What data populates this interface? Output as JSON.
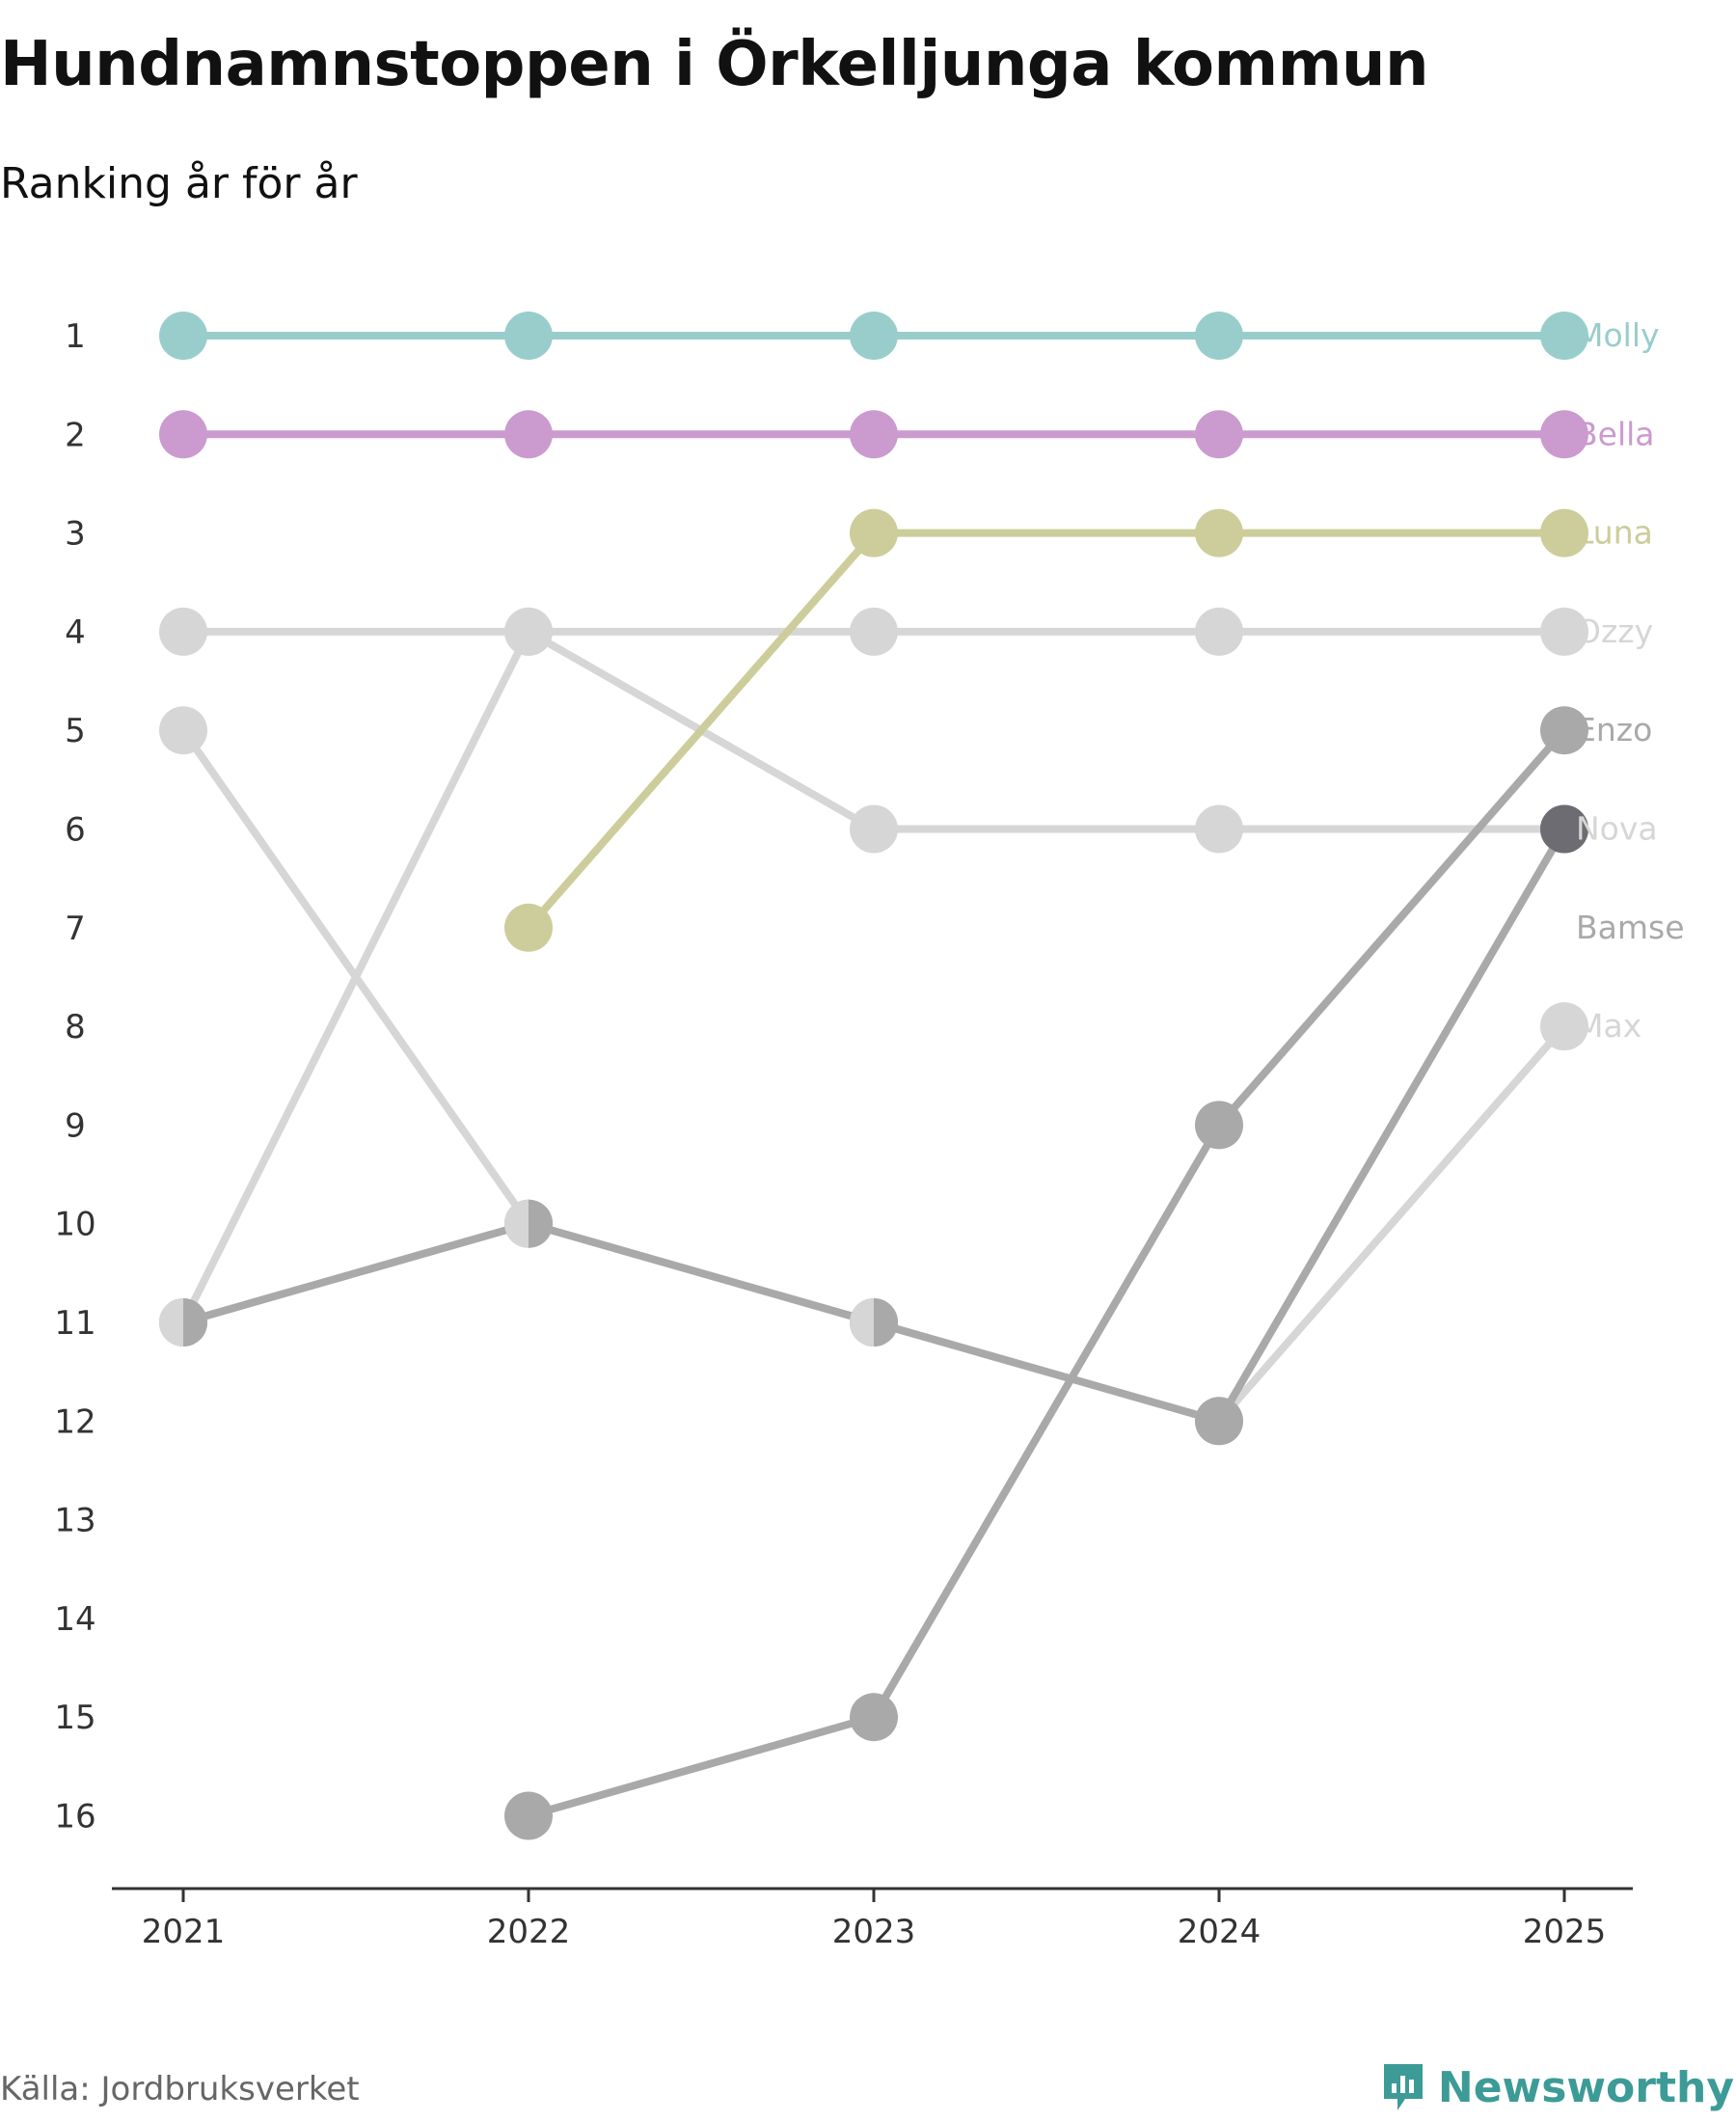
{
  "header": {
    "title": "Hundnamnstoppen i Örkelljunga kommun",
    "subtitle": "Ranking år för år"
  },
  "footer": {
    "source": "Källa: Jordbruksverket",
    "brand": "Newsworthy"
  },
  "colors": {
    "molly": "#99cdcc",
    "bella": "#cb9acf",
    "luna": "#cccd9a",
    "light_gray": "#d6d6d6",
    "mid_gray": "#a9a9a9",
    "dark_gray": "#6c6c72",
    "axis": "#333333",
    "brand": "#3c9b96"
  },
  "chart_data": {
    "type": "line",
    "title": "Hundnamnstoppen i Örkelljunga kommun",
    "subtitle": "Ranking år för år",
    "xlabel": "",
    "ylabel": "",
    "categories": [
      "2021",
      "2022",
      "2023",
      "2024",
      "2025"
    ],
    "y_ticks": [
      "1",
      "2",
      "3",
      "4",
      "5",
      "6",
      "7",
      "8",
      "9",
      "10",
      "11",
      "12",
      "13",
      "14",
      "15",
      "16"
    ],
    "ylim": [
      1,
      16
    ],
    "y_inverted": true,
    "grid": false,
    "series": [
      {
        "name": "Max",
        "color": "#d6d6d6",
        "values": [
          5,
          10,
          11,
          12,
          8
        ]
      },
      {
        "name": "Bamse",
        "color": "#a9a9a9",
        "values": [
          11,
          10,
          11,
          12,
          6
        ]
      },
      {
        "name": "Nova",
        "color": "#d6d6d6",
        "values": [
          4,
          4,
          6,
          6,
          6
        ]
      },
      {
        "name": "Ozzy",
        "color": "#d6d6d6",
        "values": [
          11,
          4,
          4,
          4,
          4
        ]
      },
      {
        "name": "Enzo",
        "color": "#a9a9a9",
        "values": [
          null,
          16,
          15,
          9,
          5
        ]
      },
      {
        "name": "Luna",
        "color": "#cccd9a",
        "values": [
          null,
          7,
          3,
          3,
          3
        ]
      },
      {
        "name": "Bella",
        "color": "#cb9acf",
        "values": [
          2,
          2,
          2,
          2,
          2
        ]
      },
      {
        "name": "Molly",
        "color": "#99cdcc",
        "values": [
          1,
          1,
          1,
          1,
          1
        ]
      }
    ],
    "end_labels": [
      {
        "name": "Molly",
        "rank": 1,
        "color": "#99cdcc"
      },
      {
        "name": "Bella",
        "rank": 2,
        "color": "#cb9acf"
      },
      {
        "name": "Luna",
        "rank": 3,
        "color": "#cccd9a"
      },
      {
        "name": "Ozzy",
        "rank": 4,
        "color": "#d6d6d6"
      },
      {
        "name": "Enzo",
        "rank": 5,
        "color": "#a9a9a9"
      },
      {
        "name": "Nova",
        "rank": 6,
        "color": "#d6d6d6"
      },
      {
        "name": "Bamse",
        "rank": 7,
        "color": "#a9a9a9"
      },
      {
        "name": "Max",
        "rank": 8,
        "color": "#d6d6d6"
      }
    ],
    "highlight_point": {
      "name": "Bamse",
      "year": "2025",
      "rank": 6,
      "color": "#6c6c72"
    },
    "split_points": [
      {
        "year": "2021",
        "rank": 11,
        "left": "#d6d6d6",
        "right": "#a9a9a9"
      },
      {
        "year": "2022",
        "rank": 10,
        "left": "#d6d6d6",
        "right": "#a9a9a9"
      },
      {
        "year": "2023",
        "rank": 11,
        "left": "#d6d6d6",
        "right": "#a9a9a9"
      }
    ]
  }
}
